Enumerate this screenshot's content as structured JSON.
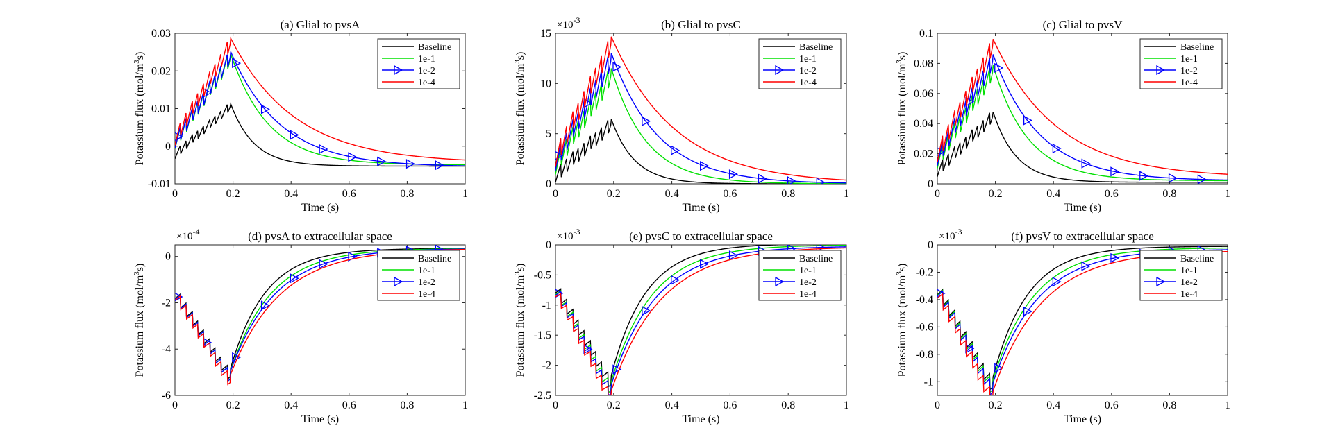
{
  "chart_data": [
    {
      "type": "line",
      "title": "(a) Glial to pvsA",
      "xlabel": "Time (s)",
      "ylabel": "Potassium flux (mol/m³s)",
      "ylabel_base": "Potassium flux (mol/m",
      "ylabel_sup": "3",
      "ylabel_end": "s)",
      "xlim": [
        0,
        1
      ],
      "ylim": [
        -0.01,
        0.03
      ],
      "xticks": [
        0,
        0.2,
        0.4,
        0.6,
        0.8,
        1
      ],
      "xtick_labels": [
        "0",
        "0.2",
        "0.4",
        "0.6",
        "0.8",
        "1"
      ],
      "yticks": [
        -0.01,
        0,
        0.01,
        0.02,
        0.03
      ],
      "ytick_labels": [
        "-0.01",
        "0",
        "0.01",
        "0.02",
        "0.03"
      ],
      "exponent_label": "",
      "legend": [
        "Baseline",
        "1e-1",
        "1e-2",
        "1e-4"
      ],
      "series": [
        {
          "name": "Baseline",
          "base": -0.005,
          "peak": 0.0117,
          "tail": -0.0053,
          "tau": 0.08,
          "osc": 0.0025
        },
        {
          "name": "1e-1",
          "base": -0.004,
          "peak": 0.025,
          "tail": -0.005,
          "tau": 0.13,
          "osc": 0.004
        },
        {
          "name": "1e-2",
          "base": -0.004,
          "peak": 0.0255,
          "tail": -0.0055,
          "tau": 0.17,
          "osc": 0.004
        },
        {
          "name": "1e-4",
          "base": -0.004,
          "peak": 0.029,
          "tail": -0.0045,
          "tau": 0.22,
          "osc": 0.004
        }
      ]
    },
    {
      "type": "line",
      "title": "(b) Glial to pvsC",
      "xlabel": "Time (s)",
      "ylabel": "Potassium flux (mol/m³s)",
      "ylabel_base": "Potassium flux (mol/m",
      "ylabel_sup": "3",
      "ylabel_end": "s)",
      "xlim": [
        0,
        1
      ],
      "ylim": [
        0,
        15
      ],
      "xticks": [
        0,
        0.2,
        0.4,
        0.6,
        0.8,
        1
      ],
      "xtick_labels": [
        "0",
        "0.2",
        "0.4",
        "0.6",
        "0.8",
        "1"
      ],
      "yticks": [
        0,
        5,
        10,
        15
      ],
      "ytick_labels": [
        "0",
        "5",
        "10",
        "15"
      ],
      "exponent_label": "×10",
      "exponent_power": "-3",
      "legend": [
        "Baseline",
        "1e-1",
        "1e-2",
        "1e-4"
      ],
      "series": [
        {
          "name": "Baseline",
          "base": 0,
          "peak": 6.6,
          "tail": 0,
          "tau": 0.08,
          "osc": 1.5
        },
        {
          "name": "1e-1",
          "base": 0,
          "peak": 11.7,
          "tail": 0,
          "tau": 0.12,
          "osc": 2.0
        },
        {
          "name": "1e-2",
          "base": 0,
          "peak": 13.2,
          "tail": 0,
          "tau": 0.16,
          "osc": 2.0
        },
        {
          "name": "1e-4",
          "base": 0,
          "peak": 14.8,
          "tail": 0,
          "tau": 0.22,
          "osc": 2.0
        }
      ]
    },
    {
      "type": "line",
      "title": "(c) Glial to pvsV",
      "xlabel": "Time (s)",
      "ylabel": "Potassium flux (mol/m³s)",
      "ylabel_base": "Potassium flux (mol/m",
      "ylabel_sup": "3",
      "ylabel_end": "s)",
      "xlim": [
        0,
        1
      ],
      "ylim": [
        0,
        0.1
      ],
      "xticks": [
        0,
        0.2,
        0.4,
        0.6,
        0.8,
        1
      ],
      "xtick_labels": [
        "0",
        "0.2",
        "0.4",
        "0.6",
        "0.8",
        "1"
      ],
      "yticks": [
        0,
        0.02,
        0.04,
        0.06,
        0.08,
        0.1
      ],
      "ytick_labels": [
        "0",
        "0.02",
        "0.04",
        "0.06",
        "0.08",
        "0.1"
      ],
      "exponent_label": "",
      "legend": [
        "Baseline",
        "1e-1",
        "1e-2",
        "1e-4"
      ],
      "series": [
        {
          "name": "Baseline",
          "base": 0.002,
          "peak": 0.049,
          "tail": 0.001,
          "tau": 0.08,
          "osc": 0.009
        },
        {
          "name": "1e-1",
          "base": 0.003,
          "peak": 0.08,
          "tail": 0.002,
          "tau": 0.12,
          "osc": 0.012
        },
        {
          "name": "1e-2",
          "base": 0.003,
          "peak": 0.087,
          "tail": 0.002,
          "tau": 0.16,
          "osc": 0.012
        },
        {
          "name": "1e-4",
          "base": 0.003,
          "peak": 0.097,
          "tail": 0.004,
          "tau": 0.22,
          "osc": 0.012
        }
      ]
    },
    {
      "type": "line",
      "title": "(d) pvsA to extracellular space",
      "xlabel": "Time (s)",
      "ylabel": "Potassium flux (mol/m³s)",
      "ylabel_base": "Potassium flux (mol/m",
      "ylabel_sup": "3",
      "ylabel_end": "s)",
      "xlim": [
        0,
        1
      ],
      "ylim": [
        -6,
        0.5
      ],
      "xticks": [
        0,
        0.2,
        0.4,
        0.6,
        0.8,
        1
      ],
      "xtick_labels": [
        "0",
        "0.2",
        "0.4",
        "0.6",
        "0.8",
        "1"
      ],
      "yticks": [
        -6,
        -4,
        -2,
        0
      ],
      "ytick_labels": [
        "-6",
        "-4",
        "-2",
        "0"
      ],
      "exponent_label": "×10",
      "exponent_power": "-4",
      "legend": [
        "Baseline",
        "1e-1",
        "1e-2",
        "1e-4"
      ],
      "series": [
        {
          "name": "Baseline",
          "base": 0,
          "peak": -4.9,
          "tail": 0.35,
          "tau": 0.12,
          "osc": 0.6
        },
        {
          "name": "1e-1",
          "base": 0,
          "peak": -5.0,
          "tail": 0.35,
          "tau": 0.14,
          "osc": 0.6
        },
        {
          "name": "1e-2",
          "base": 0,
          "peak": -5.0,
          "tail": 0.35,
          "tau": 0.155,
          "osc": 0.6
        },
        {
          "name": "1e-4",
          "base": 0,
          "peak": -5.15,
          "tail": 0.35,
          "tau": 0.17,
          "osc": 0.6
        }
      ]
    },
    {
      "type": "line",
      "title": "(e) pvsC to extracellular space",
      "xlabel": "Time (s)",
      "ylabel": "Potassium flux (mol/m³s)",
      "ylabel_base": "Potassium flux (mol/m",
      "ylabel_sup": "3",
      "ylabel_end": "s)",
      "xlim": [
        0,
        1
      ],
      "ylim": [
        -2.5,
        0
      ],
      "xticks": [
        0,
        0.2,
        0.4,
        0.6,
        0.8,
        1
      ],
      "xtick_labels": [
        "0",
        "0.2",
        "0.4",
        "0.6",
        "0.8",
        "1"
      ],
      "yticks": [
        -2.5,
        -2,
        -1.5,
        -1,
        -0.5,
        0
      ],
      "ytick_labels": [
        "-2.5",
        "-2",
        "-1.5",
        "-1",
        "-0.5",
        "0"
      ],
      "exponent_label": "×10",
      "exponent_power": "-3",
      "legend": [
        "Baseline",
        "1e-1",
        "1e-2",
        "1e-4"
      ],
      "series": [
        {
          "name": "Baseline",
          "base": 0,
          "peak": -2.2,
          "tail": 0.02,
          "tau": 0.12,
          "osc": 0.25
        },
        {
          "name": "1e-1",
          "base": 0,
          "peak": -2.3,
          "tail": 0.0,
          "tau": 0.14,
          "osc": 0.25
        },
        {
          "name": "1e-2",
          "base": 0,
          "peak": -2.35,
          "tail": -0.02,
          "tau": 0.155,
          "osc": 0.25
        },
        {
          "name": "1e-4",
          "base": 0,
          "peak": -2.45,
          "tail": -0.03,
          "tau": 0.17,
          "osc": 0.25
        }
      ]
    },
    {
      "type": "line",
      "title": "(f) pvsV to extracellular space",
      "xlabel": "Time (s)",
      "ylabel": "Potassium flux (mol/m³s)",
      "ylabel_base": "Potassium flux (mol/m",
      "ylabel_sup": "3",
      "ylabel_end": "s)",
      "xlim": [
        0,
        1
      ],
      "ylim": [
        -1.1,
        0
      ],
      "xticks": [
        0,
        0.2,
        0.4,
        0.6,
        0.8,
        1
      ],
      "xtick_labels": [
        "0",
        "0.2",
        "0.4",
        "0.6",
        "0.8",
        "1"
      ],
      "yticks": [
        -1,
        -0.8,
        -0.6,
        -0.4,
        -0.2,
        0
      ],
      "ytick_labels": [
        "-1",
        "-0.8",
        "-0.6",
        "-0.4",
        "-0.2",
        "0"
      ],
      "exponent_label": "×10",
      "exponent_power": "-3",
      "legend": [
        "Baseline",
        "1e-1",
        "1e-2",
        "1e-4"
      ],
      "series": [
        {
          "name": "Baseline",
          "base": 0,
          "peak": -0.98,
          "tail": -0.01,
          "tau": 0.12,
          "osc": 0.12
        },
        {
          "name": "1e-1",
          "base": 0,
          "peak": -1.0,
          "tail": -0.02,
          "tau": 0.14,
          "osc": 0.12
        },
        {
          "name": "1e-2",
          "base": 0,
          "peak": -1.02,
          "tail": -0.03,
          "tau": 0.155,
          "osc": 0.12
        },
        {
          "name": "1e-4",
          "base": 0,
          "peak": -1.08,
          "tail": -0.04,
          "tau": 0.17,
          "osc": 0.12
        }
      ]
    }
  ],
  "colors": {
    "Baseline": "#000000",
    "1e-1": "#00e000",
    "1e-2": "#0000ff",
    "1e-4": "#ff0000"
  },
  "marker": "triangle-right",
  "marker_series": "1e-2"
}
